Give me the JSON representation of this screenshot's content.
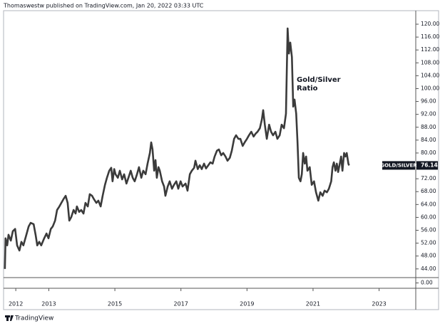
{
  "header": "Thomaswestw published on TradingView.com, Jan 20, 2022 03:33 UTC",
  "footer": "TradingView",
  "chart_data": [
    {
      "type": "line",
      "annotation": [
        "Gold/Silver",
        "Ratio"
      ],
      "xlim": [
        2011.63,
        2024.11
      ],
      "xticks": [
        2012,
        2013,
        2015,
        2017,
        2019,
        2021,
        2023
      ],
      "ylim": [
        41.3,
        124.2
      ],
      "yticks": [
        {
          "value": 44,
          "label": "44.00"
        },
        {
          "value": 48,
          "label": "48.00"
        },
        {
          "value": 52,
          "label": "52.00"
        },
        {
          "value": 56,
          "label": "56.00"
        },
        {
          "value": 60,
          "label": "60.00"
        },
        {
          "value": 64,
          "label": "64.00"
        },
        {
          "value": 68,
          "label": "68.00"
        },
        {
          "value": 72,
          "label": "72.00"
        },
        {
          "value": 76,
          "label": "76.00"
        },
        {
          "value": 80,
          "label": "80.00"
        },
        {
          "value": 84,
          "label": "84.00"
        },
        {
          "value": 88,
          "label": "88.00"
        },
        {
          "value": 92,
          "label": "92.00"
        },
        {
          "value": 96,
          "label": "96.00"
        },
        {
          "value": 100,
          "label": "100.00"
        },
        {
          "value": 104,
          "label": "104.00"
        },
        {
          "value": 108,
          "label": "108.00"
        },
        {
          "value": 112,
          "label": "112.00"
        },
        {
          "value": 116,
          "label": "116.00"
        },
        {
          "value": 120,
          "label": "120.00"
        }
      ],
      "x": [
        2011.67,
        2011.69,
        2011.74,
        2011.78,
        2011.85,
        2011.91,
        2011.98,
        2012.04,
        2012.11,
        2012.17,
        2012.23,
        2012.32,
        2012.39,
        2012.45,
        2012.54,
        2012.6,
        2012.65,
        2012.71,
        2012.77,
        2012.86,
        2012.93,
        2012.99,
        2013.06,
        2013.12,
        2013.19,
        2013.25,
        2013.32,
        2013.38,
        2013.44,
        2013.51,
        2013.57,
        2013.62,
        2013.68,
        2013.75,
        2013.81,
        2013.85,
        2013.92,
        2013.98,
        2014.05,
        2014.11,
        2014.18,
        2014.24,
        2014.31,
        2014.37,
        2014.44,
        2014.5,
        2014.57,
        2014.63,
        2014.7,
        2014.76,
        2014.83,
        2014.89,
        2014.93,
        2014.98,
        2015.02,
        2015.09,
        2015.15,
        2015.22,
        2015.28,
        2015.35,
        2015.41,
        2015.48,
        2015.54,
        2015.6,
        2015.67,
        2015.73,
        2015.8,
        2015.86,
        2015.93,
        2015.99,
        2016.06,
        2016.1,
        2016.14,
        2016.19,
        2016.23,
        2016.27,
        2016.32,
        2016.36,
        2016.43,
        2016.49,
        2016.53,
        2016.6,
        2016.66,
        2016.73,
        2016.79,
        2016.86,
        2016.92,
        2016.99,
        2017.05,
        2017.14,
        2017.2,
        2017.27,
        2017.33,
        2017.4,
        2017.44,
        2017.51,
        2017.57,
        2017.63,
        2017.7,
        2017.76,
        2017.83,
        2017.89,
        2017.96,
        2018.02,
        2018.09,
        2018.15,
        2018.22,
        2018.28,
        2018.35,
        2018.41,
        2018.48,
        2018.54,
        2018.61,
        2018.67,
        2018.74,
        2018.8,
        2018.87,
        2018.93,
        2019.0,
        2019.06,
        2019.13,
        2019.2,
        2019.26,
        2019.32,
        2019.39,
        2019.45,
        2019.49,
        2019.54,
        2019.6,
        2019.67,
        2019.73,
        2019.79,
        2019.86,
        2019.92,
        2019.99,
        2020.05,
        2020.12,
        2020.18,
        2020.23,
        2020.27,
        2020.31,
        2020.36,
        2020.4,
        2020.44,
        2020.49,
        2020.53,
        2020.57,
        2020.62,
        2020.66,
        2020.7,
        2020.75,
        2020.79,
        2020.83,
        2020.9,
        2020.96,
        2021.03,
        2021.09,
        2021.16,
        2021.22,
        2021.29,
        2021.35,
        2021.42,
        2021.48,
        2021.55,
        2021.59,
        2021.63,
        2021.68,
        2021.72,
        2021.76,
        2021.81,
        2021.85,
        2021.89,
        2021.94,
        2021.98,
        2022.02,
        2022.07,
        2022.09
      ],
      "series": [
        {
          "name": "GOLD/SILVER",
          "color": "#3b3b3b",
          "values": [
            44.0,
            53.5,
            51.3,
            54.6,
            52.8,
            55.7,
            56.4,
            51.3,
            49.7,
            52.4,
            51.3,
            54.6,
            57.2,
            58.3,
            57.9,
            54.6,
            51.3,
            52.4,
            51.3,
            53.5,
            55.0,
            53.5,
            56.4,
            57.2,
            59.0,
            62.3,
            63.4,
            64.5,
            65.6,
            66.7,
            64.5,
            59.0,
            60.1,
            62.3,
            61.2,
            63.4,
            61.7,
            62.3,
            61.2,
            64.5,
            63.4,
            67.2,
            66.7,
            65.6,
            64.5,
            65.2,
            63.4,
            66.7,
            70.1,
            72.3,
            74.5,
            75.4,
            71.2,
            75.0,
            73.4,
            72.3,
            74.5,
            71.8,
            73.4,
            70.5,
            72.3,
            74.5,
            72.3,
            71.2,
            73.4,
            75.6,
            72.3,
            74.5,
            73.4,
            76.7,
            80.0,
            83.3,
            81.1,
            74.5,
            77.8,
            72.3,
            75.6,
            74.5,
            71.2,
            69.6,
            66.7,
            69.6,
            71.2,
            68.9,
            70.1,
            71.2,
            68.9,
            71.2,
            69.6,
            70.5,
            68.3,
            73.4,
            74.5,
            75.4,
            77.6,
            75.0,
            76.2,
            75.0,
            76.7,
            75.2,
            76.2,
            77.1,
            76.7,
            78.9,
            80.7,
            81.1,
            79.3,
            80.0,
            78.9,
            77.6,
            78.5,
            80.7,
            84.4,
            85.5,
            84.4,
            84.4,
            82.2,
            83.3,
            84.4,
            85.5,
            86.6,
            85.1,
            86.0,
            86.6,
            87.7,
            90.4,
            93.3,
            88.8,
            84.4,
            88.8,
            86.6,
            85.5,
            86.6,
            84.4,
            85.5,
            88.8,
            87.7,
            92.2,
            118.7,
            110.9,
            114.3,
            109.8,
            94.4,
            96.6,
            92.2,
            83.3,
            72.3,
            71.2,
            73.4,
            80.0,
            76.7,
            78.9,
            74.5,
            75.6,
            70.1,
            71.2,
            67.8,
            65.2,
            67.8,
            66.7,
            68.3,
            67.8,
            68.9,
            71.2,
            75.6,
            77.1,
            74.5,
            76.7,
            74.1,
            76.7,
            78.9,
            74.5,
            80.0,
            78.9,
            80.0,
            76.7,
            76.14
          ]
        }
      ]
    },
    {
      "type": "pane",
      "ylim": [
        -1,
        1
      ],
      "yticks": [
        {
          "value": 0,
          "label": "0.00"
        }
      ]
    }
  ]
}
